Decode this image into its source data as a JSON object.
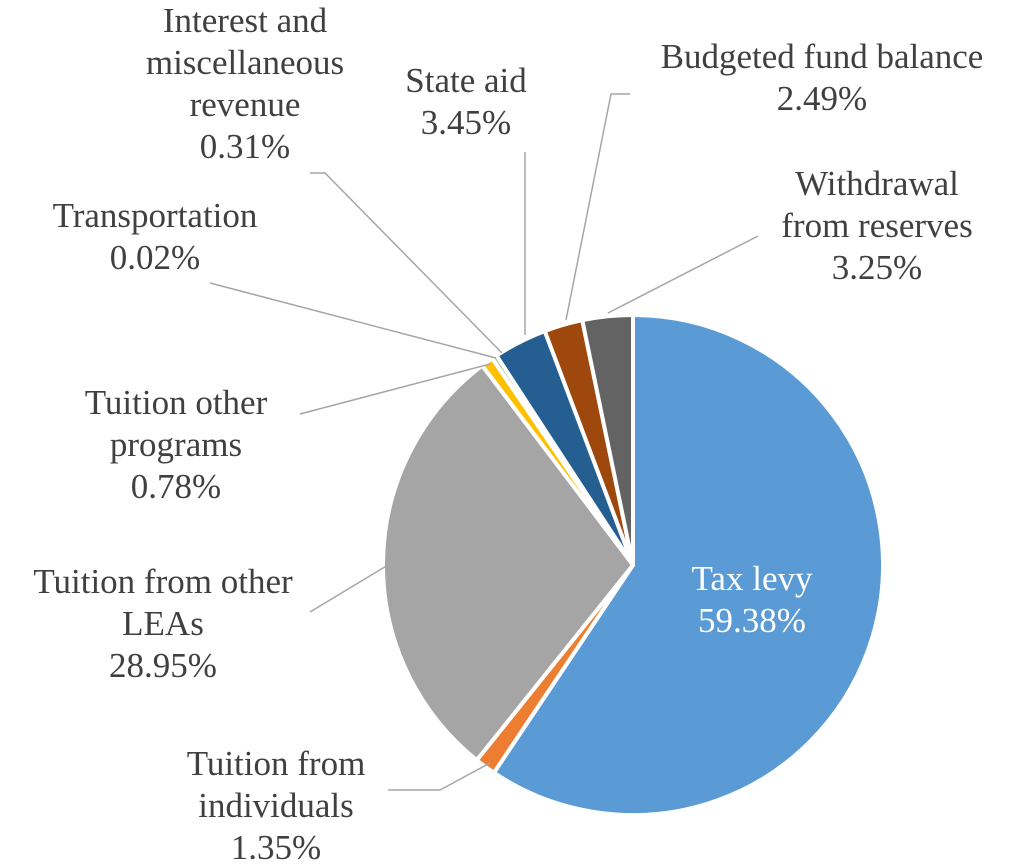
{
  "chart_data": {
    "type": "pie",
    "title": "",
    "legend": "none",
    "slices": [
      {
        "name": "Tax levy",
        "value": 59.38,
        "label": "59.38%",
        "color": "#5b9bd5",
        "label_lines": [
          "Tax levy"
        ]
      },
      {
        "name": "Tuition from individuals",
        "value": 1.35,
        "label": "1.35%",
        "color": "#ed7d31",
        "label_lines": [
          "Tuition from",
          "individuals"
        ]
      },
      {
        "name": "Tuition from other LEAs",
        "value": 28.95,
        "label": "28.95%",
        "color": "#a5a5a5",
        "label_lines": [
          "Tuition from other",
          "LEAs"
        ]
      },
      {
        "name": "Tuition other programs",
        "value": 0.78,
        "label": "0.78%",
        "color": "#ffc000",
        "label_lines": [
          "Tuition other",
          "programs"
        ]
      },
      {
        "name": "Transportation",
        "value": 0.02,
        "label": "0.02%",
        "color": "#4472c4",
        "label_lines": [
          "Transportation"
        ]
      },
      {
        "name": "Interest and miscellaneous revenue",
        "value": 0.31,
        "label": "0.31%",
        "color": "#70ad47",
        "label_lines": [
          "Interest and",
          "miscellaneous",
          "revenue"
        ]
      },
      {
        "name": "State aid",
        "value": 3.45,
        "label": "3.45%",
        "color": "#255e91",
        "label_lines": [
          "State aid"
        ]
      },
      {
        "name": "Budgeted fund balance",
        "value": 2.49,
        "label": "2.49%",
        "color": "#9e480e",
        "label_lines": [
          "Budgeted fund balance"
        ]
      },
      {
        "name": "Withdrawal from reserves",
        "value": 3.25,
        "label": "3.25%",
        "color": "#636363",
        "label_lines": [
          "Withdrawal",
          "from reserves"
        ]
      }
    ]
  }
}
